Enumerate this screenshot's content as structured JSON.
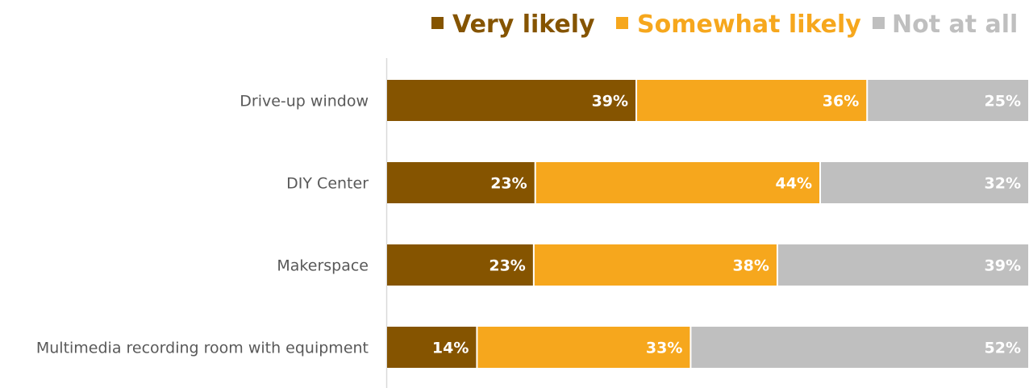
{
  "chart_data": {
    "type": "bar",
    "orientation": "horizontal",
    "stacked": true,
    "percent_stacked": true,
    "categories": [
      "Drive-up window",
      "DIY Center",
      "Makerspace",
      "Multimedia recording room with equipment"
    ],
    "series": [
      {
        "name": "Very likely",
        "color": "#855400",
        "values": [
          39,
          23,
          23,
          14
        ],
        "labels": [
          "39%",
          "23%",
          "23%",
          "14%"
        ]
      },
      {
        "name": "Somewhat likely",
        "color": "#F6A71D",
        "values": [
          36,
          44,
          38,
          33
        ],
        "labels": [
          "36%",
          "44%",
          "38%",
          "33%"
        ]
      },
      {
        "name": "Not at all",
        "color": "#BFBFBF",
        "values": [
          25,
          32,
          39,
          52
        ],
        "labels": [
          "25%",
          "32%",
          "39%",
          "52%"
        ]
      }
    ],
    "legend": {
      "position": "top-right",
      "marker": "■"
    },
    "grid": false,
    "title": "",
    "xlabel": "",
    "ylabel": ""
  }
}
